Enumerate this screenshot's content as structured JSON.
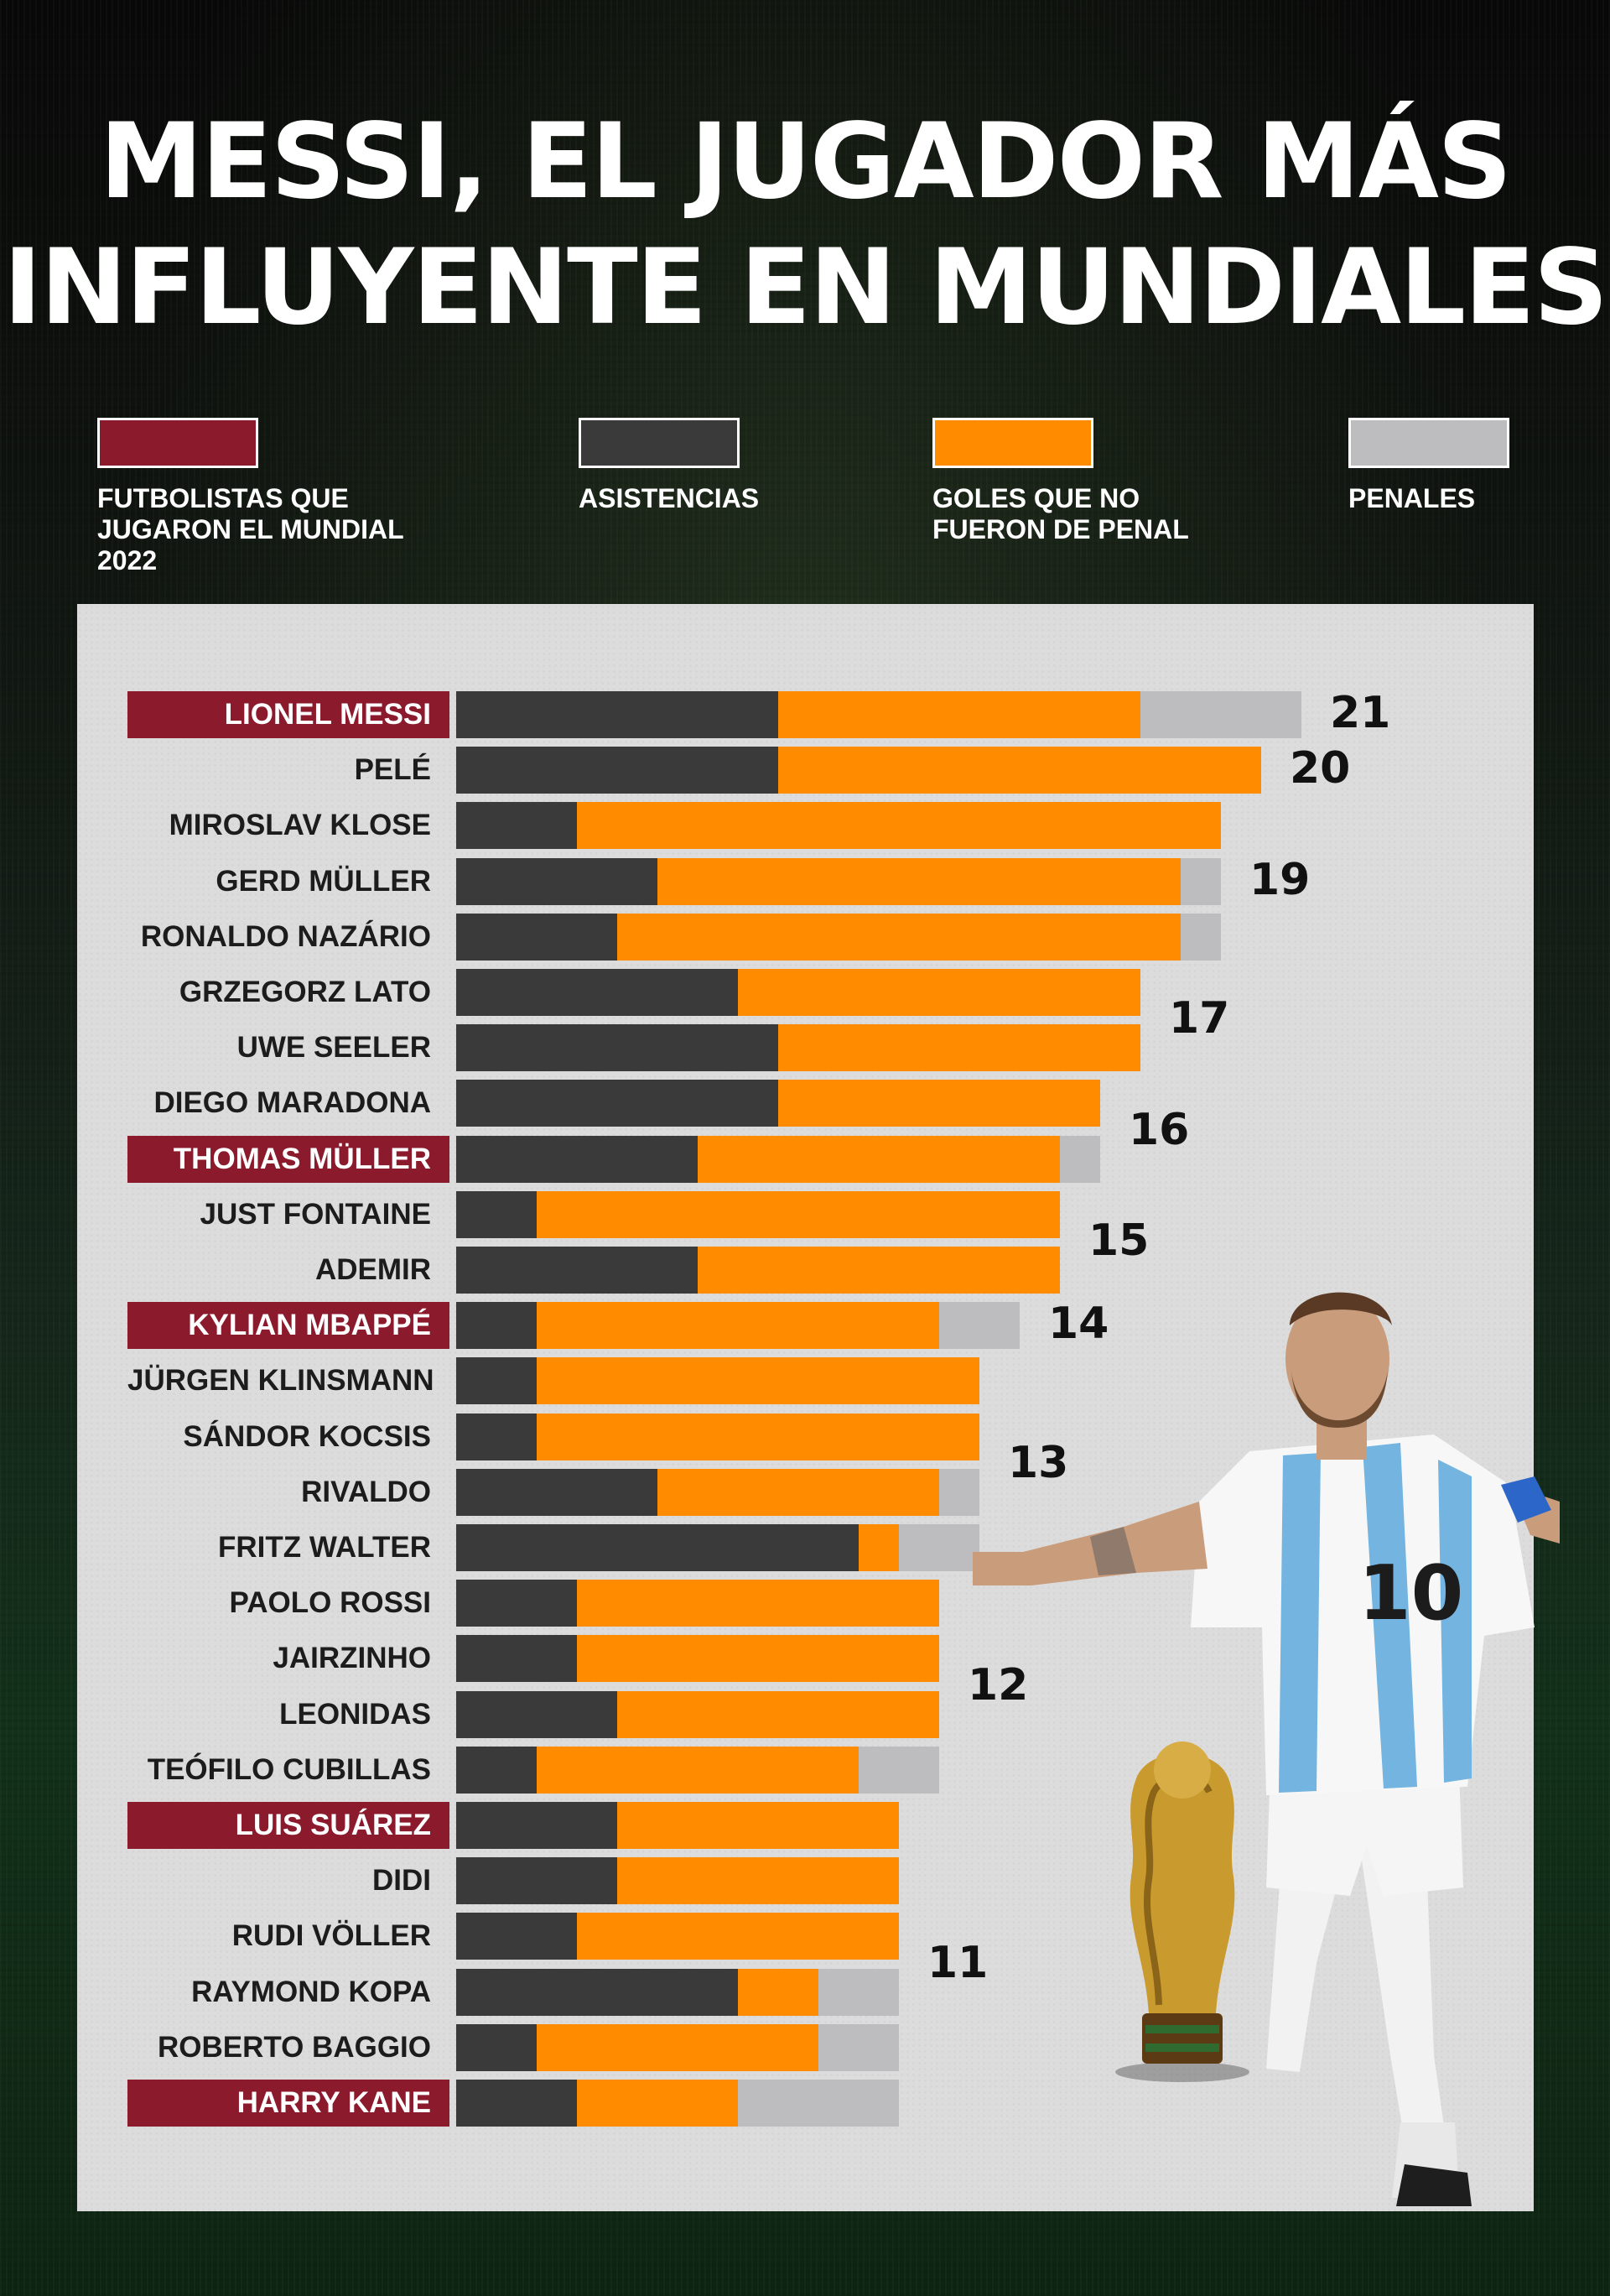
{
  "title_lines": [
    "MESSI, EL JUGADOR MÁS",
    "INFLUYENTE EN MUNDIALES"
  ],
  "legend": [
    {
      "label": "FUTBOLISTAS QUE\nJUGARON EL MUNDIAL\n2022",
      "color": "#8b1a2c"
    },
    {
      "label": "ASISTENCIAS",
      "color": "#3a3a3a"
    },
    {
      "label": "GOLES QUE NO\nFUERON DE PENAL",
      "color": "#ff8c00"
    },
    {
      "label": "PENALES",
      "color": "#bdbdc0"
    }
  ],
  "colors": {
    "asistencias": "#3a3a3a",
    "goles": "#ff8c00",
    "penales": "#bdbdc0",
    "highlight": "#8b1a2c"
  },
  "chart_data": {
    "type": "bar",
    "orientation": "horizontal",
    "stacked": true,
    "series_names": [
      "ASISTENCIAS",
      "GOLES QUE NO FUERON DE PENAL",
      "PENALES"
    ],
    "rows": [
      {
        "name": "LIONEL MESSI",
        "played_2022": true,
        "asistencias": 8,
        "goles": 9,
        "penales": 4
      },
      {
        "name": "PELÉ",
        "played_2022": false,
        "asistencias": 8,
        "goles": 12,
        "penales": 0
      },
      {
        "name": "MIROSLAV KLOSE",
        "played_2022": false,
        "asistencias": 3,
        "goles": 16,
        "penales": 0
      },
      {
        "name": "GERD MÜLLER",
        "played_2022": false,
        "asistencias": 5,
        "goles": 13,
        "penales": 1
      },
      {
        "name": "RONALDO NAZÁRIO",
        "played_2022": false,
        "asistencias": 4,
        "goles": 14,
        "penales": 1
      },
      {
        "name": "GRZEGORZ LATO",
        "played_2022": false,
        "asistencias": 7,
        "goles": 10,
        "penales": 0
      },
      {
        "name": "UWE SEELER",
        "played_2022": false,
        "asistencias": 8,
        "goles": 9,
        "penales": 0
      },
      {
        "name": "DIEGO MARADONA",
        "played_2022": false,
        "asistencias": 8,
        "goles": 8,
        "penales": 0
      },
      {
        "name": "THOMAS MÜLLER",
        "played_2022": true,
        "asistencias": 6,
        "goles": 9,
        "penales": 1
      },
      {
        "name": "JUST FONTAINE",
        "played_2022": false,
        "asistencias": 2,
        "goles": 13,
        "penales": 0
      },
      {
        "name": "ADEMIR",
        "played_2022": false,
        "asistencias": 6,
        "goles": 9,
        "penales": 0
      },
      {
        "name": "KYLIAN MBAPPÉ",
        "played_2022": true,
        "asistencias": 2,
        "goles": 10,
        "penales": 2
      },
      {
        "name": "JÜRGEN KLINSMANN",
        "played_2022": false,
        "asistencias": 2,
        "goles": 11,
        "penales": 0
      },
      {
        "name": "SÁNDOR KOCSIS",
        "played_2022": false,
        "asistencias": 2,
        "goles": 11,
        "penales": 0
      },
      {
        "name": "RIVALDO",
        "played_2022": false,
        "asistencias": 5,
        "goles": 7,
        "penales": 1
      },
      {
        "name": "FRITZ WALTER",
        "played_2022": false,
        "asistencias": 10,
        "goles": 1,
        "penales": 2
      },
      {
        "name": "PAOLO ROSSI",
        "played_2022": false,
        "asistencias": 3,
        "goles": 9,
        "penales": 0
      },
      {
        "name": "JAIRZINHO",
        "played_2022": false,
        "asistencias": 3,
        "goles": 9,
        "penales": 0
      },
      {
        "name": "LEONIDAS",
        "played_2022": false,
        "asistencias": 4,
        "goles": 8,
        "penales": 0
      },
      {
        "name": "TEÓFILO CUBILLAS",
        "played_2022": false,
        "asistencias": 2,
        "goles": 8,
        "penales": 2
      },
      {
        "name": "LUIS SUÁREZ",
        "played_2022": true,
        "asistencias": 4,
        "goles": 7,
        "penales": 0
      },
      {
        "name": "DIDI",
        "played_2022": false,
        "asistencias": 4,
        "goles": 7,
        "penales": 0
      },
      {
        "name": "RUDI VÖLLER",
        "played_2022": false,
        "asistencias": 3,
        "goles": 8,
        "penales": 0
      },
      {
        "name": "RAYMOND KOPA",
        "played_2022": false,
        "asistencias": 7,
        "goles": 2,
        "penales": 2
      },
      {
        "name": "ROBERTO BAGGIO",
        "played_2022": false,
        "asistencias": 2,
        "goles": 7,
        "penales": 2
      },
      {
        "name": "HARRY KANE",
        "played_2022": true,
        "asistencias": 3,
        "goles": 4,
        "penales": 4
      }
    ],
    "group_totals": [
      {
        "value": "21",
        "rows": [
          0,
          0
        ]
      },
      {
        "value": "20",
        "rows": [
          1,
          1
        ]
      },
      {
        "value": "19",
        "rows": [
          2,
          4
        ]
      },
      {
        "value": "17",
        "rows": [
          5,
          6
        ]
      },
      {
        "value": "16",
        "rows": [
          7,
          8
        ]
      },
      {
        "value": "15",
        "rows": [
          9,
          10
        ]
      },
      {
        "value": "14",
        "rows": [
          11,
          11
        ]
      },
      {
        "value": "13",
        "rows": [
          12,
          15
        ]
      },
      {
        "value": "12",
        "rows": [
          16,
          19
        ]
      },
      {
        "value": "11",
        "rows": [
          20,
          25
        ]
      }
    ]
  }
}
